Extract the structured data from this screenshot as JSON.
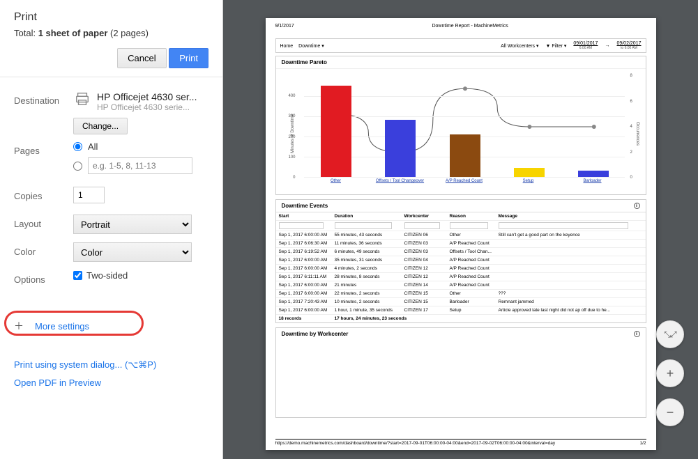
{
  "dialog": {
    "title": "Print",
    "total_prefix": "Total: ",
    "total_bold": "1 sheet of paper",
    "total_suffix": " (2 pages)",
    "cancel": "Cancel",
    "print": "Print"
  },
  "dest": {
    "label": "Destination",
    "name": "HP Officejet 4630 ser...",
    "sub": "HP Officejet 4630 serie...",
    "change": "Change..."
  },
  "pages": {
    "label": "Pages",
    "all": "All",
    "placeholder": "e.g. 1-5, 8, 11-13"
  },
  "copies": {
    "label": "Copies",
    "value": "1"
  },
  "layout": {
    "label": "Layout",
    "value": "Portrait"
  },
  "color": {
    "label": "Color",
    "value": "Color"
  },
  "options": {
    "label": "Options",
    "twosided": "Two-sided"
  },
  "more": "More settings",
  "links": {
    "system": "Print using system dialog... (⌥⌘P)",
    "pdf": "Open PDF in Preview"
  },
  "preview": {
    "date_top": "9/1/2017",
    "title_top": "Downtime Report - MachineMetrics",
    "nav": {
      "home": "Home",
      "downtime": "Downtime ▾",
      "workcenters": "All Workcenters ▾",
      "filter": "▼ Filter ▾",
      "date1": "09/01/2017",
      "date1_sub": "6:00 AM",
      "arrow": "→",
      "date2": "09/02/2017",
      "date2_sub": "to 6:00 AM"
    },
    "chart": {
      "title": "Downtime Pareto",
      "type": "bar+line",
      "y_left_label": "Minutes of Downtime",
      "y_right_label": "Occurrences",
      "y_left_ticks": [
        0,
        100,
        200,
        300,
        400
      ],
      "y_left_max": 500,
      "y_right_ticks": [
        0,
        2,
        4,
        6,
        8
      ],
      "y_right_max": 8,
      "categories": [
        "Other",
        "Offsets / Tool Changeover",
        "A/P Reached Count",
        "Setup",
        "Barloader"
      ],
      "bar_values": [
        450,
        280,
        210,
        45,
        30
      ],
      "bar_colors": [
        "#e11b22",
        "#3a3fdc",
        "#8b4a10",
        "#f7d400",
        "#3a3fdc"
      ],
      "line_values": [
        5,
        2,
        7,
        4,
        4
      ],
      "line_color": "#555555",
      "grid_color": "#eeeeee"
    },
    "events": {
      "title": "Downtime Events",
      "headers": [
        "Start",
        "Duration",
        "Workcenter",
        "Reason",
        "Message"
      ],
      "rows": [
        [
          "Sep 1, 2017 6:00:00 AM",
          "55 minutes, 43 seconds",
          "CITIZEN 06",
          "Other",
          "Still can't get a good part on the keyence"
        ],
        [
          "Sep 1, 2017 6:06:30 AM",
          "11 minutes, 36 seconds",
          "CITIZEN 03",
          "A/P Reached Count",
          ""
        ],
        [
          "Sep 1, 2017 6:19:52 AM",
          "6 minutes, 49 seconds",
          "CITIZEN 03",
          "Offsets / Tool Chan...",
          ""
        ],
        [
          "Sep 1, 2017 6:00:00 AM",
          "35 minutes, 31 seconds",
          "CITIZEN 04",
          "A/P Reached Count",
          ""
        ],
        [
          "Sep 1, 2017 6:00:00 AM",
          "4 minutes, 2 seconds",
          "CITIZEN 12",
          "A/P Reached Count",
          ""
        ],
        [
          "Sep 1, 2017 6:11:11 AM",
          "28 minutes, 8 seconds",
          "CITIZEN 12",
          "A/P Reached Count",
          ""
        ],
        [
          "Sep 1, 2017 6:00:00 AM",
          "21 minutes",
          "CITIZEN 14",
          "A/P Reached Count",
          ""
        ],
        [
          "Sep 1, 2017 6:00:00 AM",
          "22 minutes, 2 seconds",
          "CITIZEN 15",
          "Other",
          "???"
        ],
        [
          "Sep 1, 2017 7:20:43 AM",
          "10 minutes, 2 seconds",
          "CITIZEN 15",
          "Barloader",
          "Remnant jammed"
        ],
        [
          "Sep 1, 2017 6:00:00 AM",
          "1 hour, 1 minute, 35 seconds",
          "CITIZEN 17",
          "Setup",
          "Article approved late last night did not ap off due to he..."
        ]
      ],
      "footer_left": "18 records",
      "footer_right": "17 hours, 24 minutes, 23 seconds"
    },
    "wc_panel_title": "Downtime by Workcenter",
    "footer_url": "https://demo.machinemetrics.com/dashboard/downtime/?start=2017-09-01T06:00:00-04:00&end=2017-09-02T06:00:00-04:00&interval=day",
    "footer_page": "1/2"
  }
}
